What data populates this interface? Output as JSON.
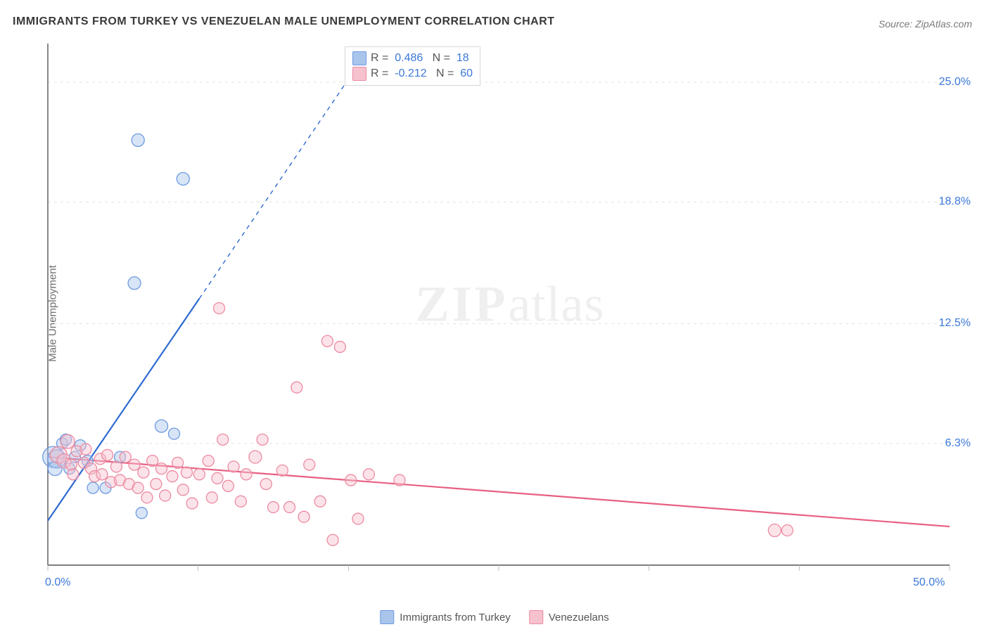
{
  "title": "IMMIGRANTS FROM TURKEY VS VENEZUELAN MALE UNEMPLOYMENT CORRELATION CHART",
  "source_label": "Source: ZipAtlas.com",
  "ylabel": "Male Unemployment",
  "watermark": {
    "bold": "ZIP",
    "rest": "atlas"
  },
  "colors": {
    "series_a_fill": "#a9c5ec",
    "series_a_stroke": "#6d9ae0",
    "series_a_line": "#2e6bd1",
    "series_b_fill": "#f6c2ce",
    "series_b_stroke": "#ed8ba1",
    "series_b_line": "#e85f83",
    "axis": "#555555",
    "grid": "#e3e3e3",
    "tick": "#bcbcbc",
    "tick_label": "#3b78d8",
    "title_color": "#3a3a3a",
    "label_color": "#6d6d6d"
  },
  "fonts": {
    "title_size": 16,
    "axis_label_size": 15,
    "tick_label_size": 16,
    "legend_size": 16,
    "watermark_size": 72
  },
  "chart": {
    "type": "scatter",
    "xlim": [
      0,
      50
    ],
    "ylim": [
      0,
      27
    ],
    "x_ticks_at": [
      0,
      8.33,
      16.67,
      25,
      33.33,
      41.67,
      50
    ],
    "x_tick_labels": {
      "0": "0.0%",
      "50": "50.0%"
    },
    "y_ticks": [
      6.3,
      12.5,
      18.8,
      25.0
    ],
    "y_tick_labels": [
      "6.3%",
      "12.5%",
      "18.8%",
      "25.0%"
    ],
    "grid_y": [
      6.3,
      12.5,
      18.8,
      25.0
    ],
    "base_marker_r": 8,
    "line_width": 2.2,
    "series_a": {
      "name": "Immigrants from Turkey",
      "R": "0.486",
      "N": "18",
      "trend": {
        "x1": 0,
        "y1": 2.3,
        "x2_solid": 8.4,
        "y2_solid": 13.8,
        "x2_dash": 17.5,
        "y2_dash": 26.3
      },
      "points": [
        {
          "x": 0.3,
          "y": 5.6,
          "r": 15
        },
        {
          "x": 0.5,
          "y": 5.5,
          "r": 13
        },
        {
          "x": 0.4,
          "y": 5.0,
          "r": 10
        },
        {
          "x": 0.8,
          "y": 6.3,
          "r": 8
        },
        {
          "x": 1.2,
          "y": 5.0,
          "r": 8
        },
        {
          "x": 1.5,
          "y": 5.6,
          "r": 8
        },
        {
          "x": 1.0,
          "y": 6.5,
          "r": 8
        },
        {
          "x": 1.8,
          "y": 6.2,
          "r": 8
        },
        {
          "x": 2.2,
          "y": 5.4,
          "r": 8
        },
        {
          "x": 2.5,
          "y": 4.0,
          "r": 8
        },
        {
          "x": 3.2,
          "y": 4.0,
          "r": 8
        },
        {
          "x": 4.0,
          "y": 5.6,
          "r": 8
        },
        {
          "x": 5.2,
          "y": 2.7,
          "r": 8
        },
        {
          "x": 6.3,
          "y": 7.2,
          "r": 9
        },
        {
          "x": 7.0,
          "y": 6.8,
          "r": 8
        },
        {
          "x": 4.8,
          "y": 14.6,
          "r": 9
        },
        {
          "x": 5.0,
          "y": 22.0,
          "r": 9
        },
        {
          "x": 7.5,
          "y": 20.0,
          "r": 9
        }
      ]
    },
    "series_b": {
      "name": "Venezuelans",
      "R": "-0.212",
      "N": "60",
      "trend": {
        "x1": 0,
        "y1": 5.6,
        "x2": 50,
        "y2": 2.0
      },
      "points": [
        {
          "x": 0.6,
          "y": 5.7,
          "r": 12
        },
        {
          "x": 0.9,
          "y": 5.4,
          "r": 10
        },
        {
          "x": 1.1,
          "y": 6.4,
          "r": 10
        },
        {
          "x": 1.3,
          "y": 5.2,
          "r": 8
        },
        {
          "x": 1.6,
          "y": 5.9,
          "r": 8
        },
        {
          "x": 1.4,
          "y": 4.7,
          "r": 8
        },
        {
          "x": 2.0,
          "y": 5.3,
          "r": 8
        },
        {
          "x": 2.1,
          "y": 6.0,
          "r": 8
        },
        {
          "x": 2.4,
          "y": 5.0,
          "r": 8
        },
        {
          "x": 2.6,
          "y": 4.6,
          "r": 8
        },
        {
          "x": 2.9,
          "y": 5.5,
          "r": 8
        },
        {
          "x": 3.0,
          "y": 4.7,
          "r": 8
        },
        {
          "x": 3.3,
          "y": 5.7,
          "r": 8
        },
        {
          "x": 3.5,
          "y": 4.3,
          "r": 8
        },
        {
          "x": 3.8,
          "y": 5.1,
          "r": 8
        },
        {
          "x": 4.0,
          "y": 4.4,
          "r": 8
        },
        {
          "x": 4.3,
          "y": 5.6,
          "r": 8
        },
        {
          "x": 4.5,
          "y": 4.2,
          "r": 8
        },
        {
          "x": 4.8,
          "y": 5.2,
          "r": 8
        },
        {
          "x": 5.0,
          "y": 4.0,
          "r": 8
        },
        {
          "x": 5.3,
          "y": 4.8,
          "r": 8
        },
        {
          "x": 5.5,
          "y": 3.5,
          "r": 8
        },
        {
          "x": 5.8,
          "y": 5.4,
          "r": 8
        },
        {
          "x": 6.0,
          "y": 4.2,
          "r": 8
        },
        {
          "x": 6.3,
          "y": 5.0,
          "r": 8
        },
        {
          "x": 6.5,
          "y": 3.6,
          "r": 8
        },
        {
          "x": 6.9,
          "y": 4.6,
          "r": 8
        },
        {
          "x": 7.2,
          "y": 5.3,
          "r": 8
        },
        {
          "x": 7.5,
          "y": 3.9,
          "r": 8
        },
        {
          "x": 7.7,
          "y": 4.8,
          "r": 8
        },
        {
          "x": 8.0,
          "y": 3.2,
          "r": 8
        },
        {
          "x": 8.4,
          "y": 4.7,
          "r": 8
        },
        {
          "x": 8.9,
          "y": 5.4,
          "r": 8
        },
        {
          "x": 9.1,
          "y": 3.5,
          "r": 8
        },
        {
          "x": 9.4,
          "y": 4.5,
          "r": 8
        },
        {
          "x": 9.7,
          "y": 6.5,
          "r": 8
        },
        {
          "x": 10.0,
          "y": 4.1,
          "r": 8
        },
        {
          "x": 10.3,
          "y": 5.1,
          "r": 8
        },
        {
          "x": 10.7,
          "y": 3.3,
          "r": 8
        },
        {
          "x": 11.0,
          "y": 4.7,
          "r": 8
        },
        {
          "x": 11.5,
          "y": 5.6,
          "r": 9
        },
        {
          "x": 12.1,
          "y": 4.2,
          "r": 8
        },
        {
          "x": 12.5,
          "y": 3.0,
          "r": 8
        },
        {
          "x": 13.0,
          "y": 4.9,
          "r": 8
        },
        {
          "x": 13.4,
          "y": 3.0,
          "r": 8
        },
        {
          "x": 13.8,
          "y": 9.2,
          "r": 8
        },
        {
          "x": 14.2,
          "y": 2.5,
          "r": 8
        },
        {
          "x": 14.5,
          "y": 5.2,
          "r": 8
        },
        {
          "x": 15.1,
          "y": 3.3,
          "r": 8
        },
        {
          "x": 15.5,
          "y": 11.6,
          "r": 8
        },
        {
          "x": 15.8,
          "y": 1.3,
          "r": 8
        },
        {
          "x": 16.2,
          "y": 11.3,
          "r": 8
        },
        {
          "x": 16.8,
          "y": 4.4,
          "r": 8
        },
        {
          "x": 17.2,
          "y": 2.4,
          "r": 8
        },
        {
          "x": 17.8,
          "y": 4.7,
          "r": 8
        },
        {
          "x": 19.5,
          "y": 4.4,
          "r": 8
        },
        {
          "x": 9.5,
          "y": 13.3,
          "r": 8
        },
        {
          "x": 40.3,
          "y": 1.8,
          "r": 9
        },
        {
          "x": 41.0,
          "y": 1.8,
          "r": 8
        },
        {
          "x": 11.9,
          "y": 6.5,
          "r": 8
        }
      ]
    }
  },
  "top_legend": {
    "rows": [
      {
        "swatch": "a",
        "R_label": "R =",
        "R_val": "0.486",
        "N_label": "N =",
        "N_val": "18"
      },
      {
        "swatch": "b",
        "R_label": "R =",
        "R_val": "-0.212",
        "N_label": "N =",
        "N_val": "60"
      }
    ]
  },
  "bottom_legend": {
    "items": [
      {
        "swatch": "a",
        "label": "Immigrants from Turkey"
      },
      {
        "swatch": "b",
        "label": "Venezuelans"
      }
    ]
  }
}
